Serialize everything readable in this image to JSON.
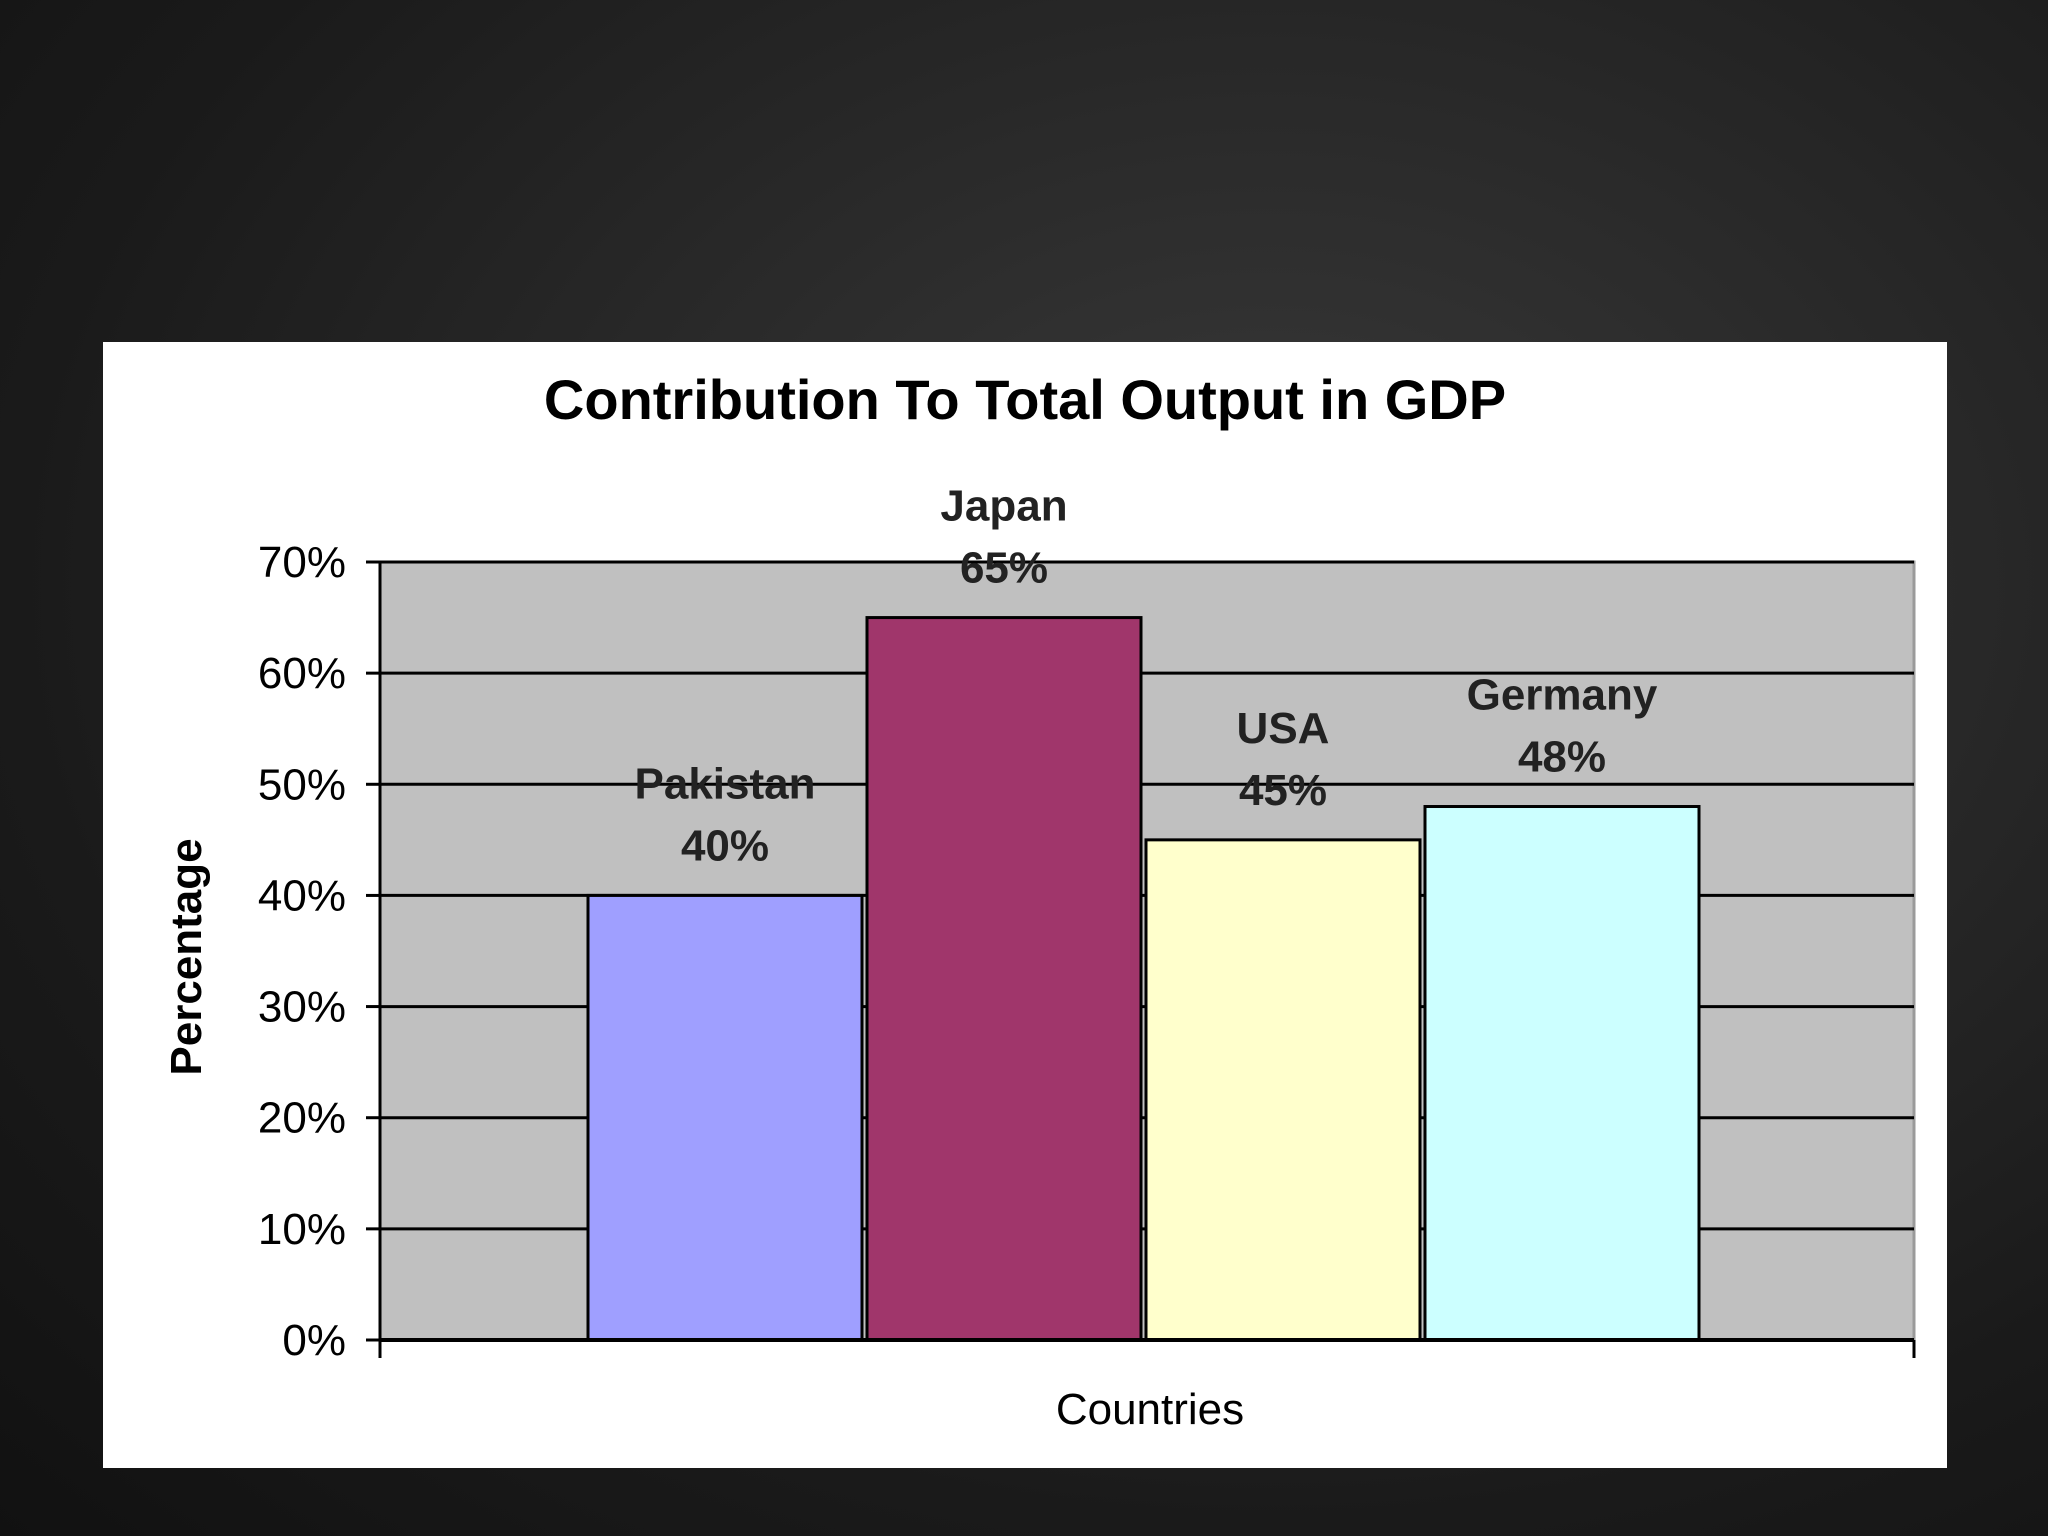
{
  "chart_data": {
    "type": "bar",
    "title": "Contribution To Total Output in GDP",
    "xlabel": "Countries",
    "ylabel": "Percentage",
    "categories": [
      "Pakistan",
      "Japan",
      "USA",
      "Germany"
    ],
    "values": [
      40,
      65,
      45,
      48
    ],
    "value_labels": [
      "40%",
      "65%",
      "45%",
      "48%"
    ],
    "ylim": [
      0,
      70
    ],
    "yticks": [
      0,
      10,
      20,
      30,
      40,
      50,
      60,
      70
    ],
    "ytick_labels": [
      "0%",
      "10%",
      "20%",
      "30%",
      "40%",
      "50%",
      "60%",
      "70%"
    ],
    "grid": true,
    "plot_background": "#c0c0c0",
    "bar_colors": [
      "#9f9fff",
      "#a0366b",
      "#ffffcc",
      "#ccffff"
    ]
  }
}
